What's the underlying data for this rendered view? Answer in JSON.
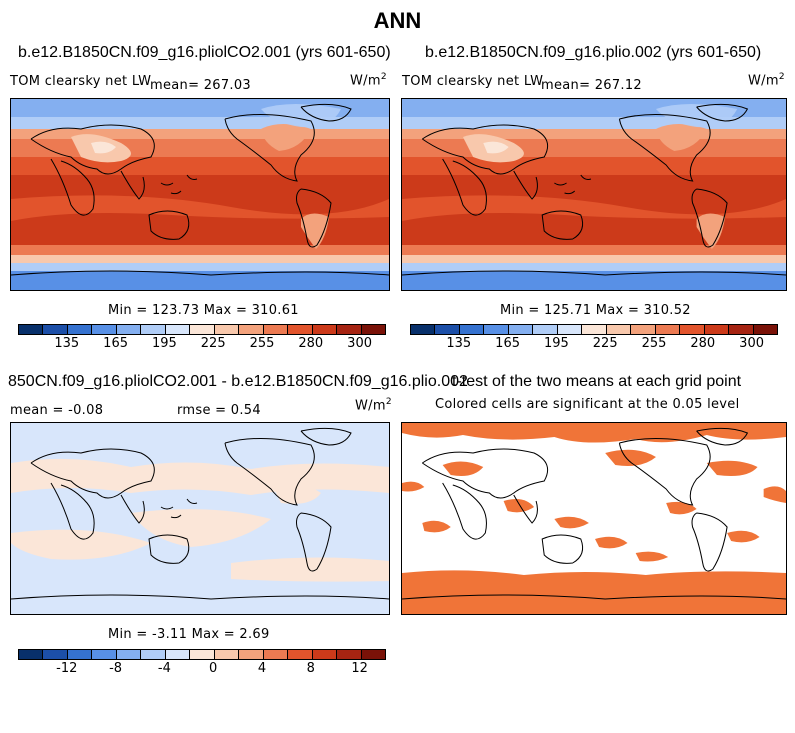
{
  "figure_title": "ANN",
  "panels": [
    {
      "title": "b.e12.B1850CN.f09_g16.pliolCO2.001 (yrs 601-650)",
      "left_label": "TOM clearsky net LW",
      "mean_label": "mean= 267.03",
      "units": "W/m²",
      "stats": "Min = 123.73 Max = 310.61",
      "colorbar_ticks": [
        "135",
        "165",
        "195",
        "225",
        "255",
        "280",
        "300"
      ]
    },
    {
      "title": "b.e12.B1850CN.f09_g16.plio.002 (yrs 601-650)",
      "left_label": "TOM clearsky net LW",
      "mean_label": "mean= 267.12",
      "units": "W/m²",
      "stats": "Min = 125.71 Max = 310.52",
      "colorbar_ticks": [
        "135",
        "165",
        "195",
        "225",
        "255",
        "280",
        "300"
      ]
    },
    {
      "title": "850CN.f09_g16.pliolCO2.001 - b.e12.B1850CN.f09_g16.plio.002",
      "mean_label": "mean =  -0.08",
      "rmse_label": "rmse =   0.54",
      "units": "W/m²",
      "stats": "Min = -3.11 Max =  2.69",
      "colorbar_ticks": [
        "-12",
        "-8",
        "-4",
        "0",
        "4",
        "8",
        "12"
      ]
    },
    {
      "title": "t-test of the two means at each grid point",
      "subtitle": "Colored cells are significant at the 0.05 level"
    }
  ],
  "colors": {
    "abs_scale": [
      "#08306b",
      "#1c4fa8",
      "#3572d0",
      "#5890e6",
      "#84aff0",
      "#b0cdf7",
      "#d8e6fb",
      "#fbe6d8",
      "#f8c8ac",
      "#f3a27c",
      "#ec7a52",
      "#e2542c",
      "#cc3a1a",
      "#a62412",
      "#7a1208"
    ],
    "diff_scale": [
      "#08306b",
      "#1c4fa8",
      "#3572d0",
      "#5890e6",
      "#84aff0",
      "#b0cdf7",
      "#d8e6fb",
      "#fbe6d8",
      "#f8c8ac",
      "#f3a27c",
      "#ec7a52",
      "#e2542c",
      "#cc3a1a",
      "#a62412",
      "#7a1208"
    ],
    "ttest_fill": "#f07438"
  }
}
